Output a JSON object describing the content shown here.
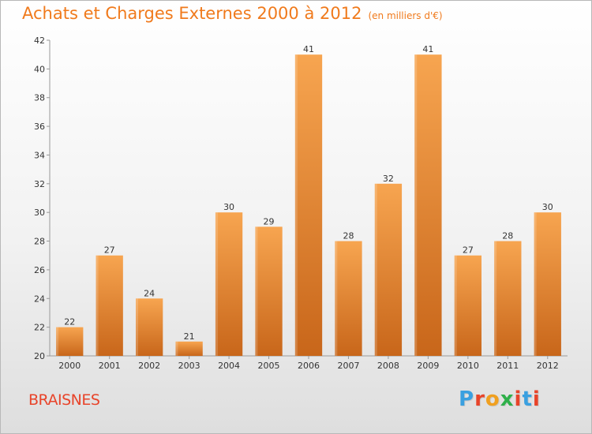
{
  "title": "Achats et Charges Externes 2000 à 2012",
  "unit": "(en milliers d'€)",
  "commune": "BRAISNES",
  "logo_text": "Proxiti",
  "chart_data": {
    "type": "bar",
    "categories": [
      "2000",
      "2001",
      "2002",
      "2003",
      "2004",
      "2005",
      "2006",
      "2007",
      "2008",
      "2009",
      "2010",
      "2011",
      "2012"
    ],
    "values": [
      22,
      27,
      24,
      21,
      30,
      29,
      41,
      28,
      32,
      41,
      27,
      28,
      30
    ],
    "title": "Achats et Charges Externes 2000 à 2012",
    "xlabel": "",
    "ylabel": "",
    "ylim": [
      20,
      42
    ],
    "yticks": [
      20,
      22,
      24,
      26,
      28,
      30,
      32,
      34,
      36,
      38,
      40,
      42
    ],
    "grid": false,
    "colors": {
      "bar_light": "#f7a550",
      "bar_dark": "#c8661a",
      "title": "#f07a1c"
    }
  }
}
